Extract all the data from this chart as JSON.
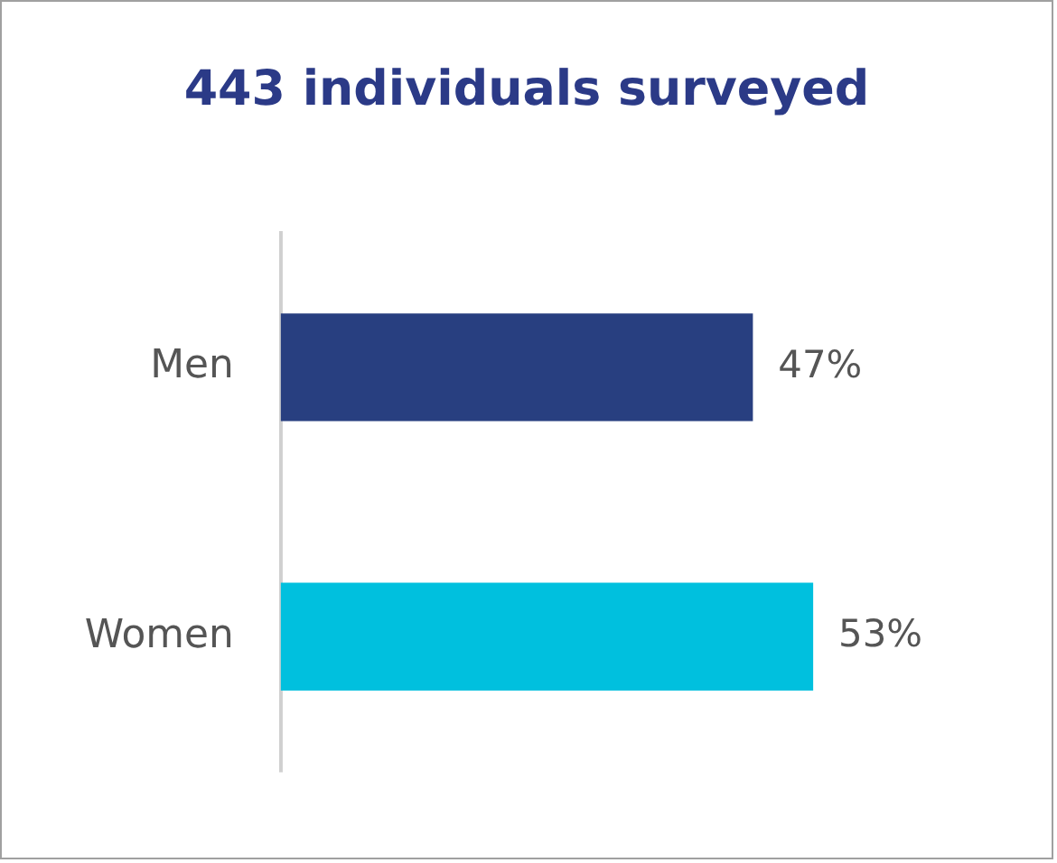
{
  "chart_data": {
    "type": "bar",
    "orientation": "horizontal",
    "title": "443 individuals surveyed",
    "categories": [
      "Men",
      "Women"
    ],
    "values": [
      47,
      53
    ],
    "colors": [
      "#283f80",
      "#00c0de"
    ],
    "value_labels": [
      "47%",
      "53%"
    ],
    "tick_labels": "y"
  }
}
